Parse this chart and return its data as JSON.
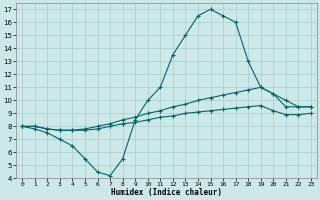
{
  "xlabel": "Humidex (Indice chaleur)",
  "background_color": "#cce8e8",
  "grid_color": "#aacccc",
  "line_color": "#006666",
  "xlim": [
    -0.5,
    23.5
  ],
  "ylim": [
    4,
    17.5
  ],
  "xticks": [
    0,
    1,
    2,
    3,
    4,
    5,
    6,
    7,
    8,
    9,
    10,
    11,
    12,
    13,
    14,
    15,
    16,
    17,
    18,
    19,
    20,
    21,
    22,
    23
  ],
  "yticks": [
    4,
    5,
    6,
    7,
    8,
    9,
    10,
    11,
    12,
    13,
    14,
    15,
    16,
    17
  ],
  "line1_x": [
    0,
    1,
    2,
    3,
    4,
    5,
    6,
    7,
    8,
    9,
    10,
    11,
    12,
    13,
    14,
    15,
    16,
    17,
    18,
    19,
    20,
    21,
    22,
    23
  ],
  "line1_y": [
    8.0,
    7.8,
    7.5,
    7.0,
    6.5,
    5.5,
    4.5,
    4.2,
    5.5,
    8.5,
    10.0,
    11.0,
    13.5,
    15.0,
    16.5,
    17.0,
    16.5,
    16.0,
    13.0,
    11.0,
    10.5,
    9.5,
    9.5,
    9.5
  ],
  "line2_x": [
    0,
    1,
    2,
    3,
    4,
    5,
    6,
    7,
    8,
    9,
    10,
    11,
    12,
    13,
    14,
    15,
    16,
    17,
    18,
    19,
    20,
    21,
    22,
    23
  ],
  "line2_y": [
    8.0,
    8.0,
    7.8,
    7.7,
    7.7,
    7.8,
    8.0,
    8.2,
    8.5,
    8.7,
    9.0,
    9.2,
    9.5,
    9.7,
    10.0,
    10.2,
    10.4,
    10.6,
    10.8,
    11.0,
    10.5,
    10.0,
    9.5,
    9.5
  ],
  "line3_x": [
    0,
    1,
    2,
    3,
    4,
    5,
    6,
    7,
    8,
    9,
    10,
    11,
    12,
    13,
    14,
    15,
    16,
    17,
    18,
    19,
    20,
    21,
    22,
    23
  ],
  "line3_y": [
    8.0,
    8.0,
    7.8,
    7.7,
    7.7,
    7.7,
    7.8,
    8.0,
    8.2,
    8.3,
    8.5,
    8.7,
    8.8,
    9.0,
    9.1,
    9.2,
    9.3,
    9.4,
    9.5,
    9.6,
    9.2,
    8.9,
    8.9,
    9.0
  ]
}
